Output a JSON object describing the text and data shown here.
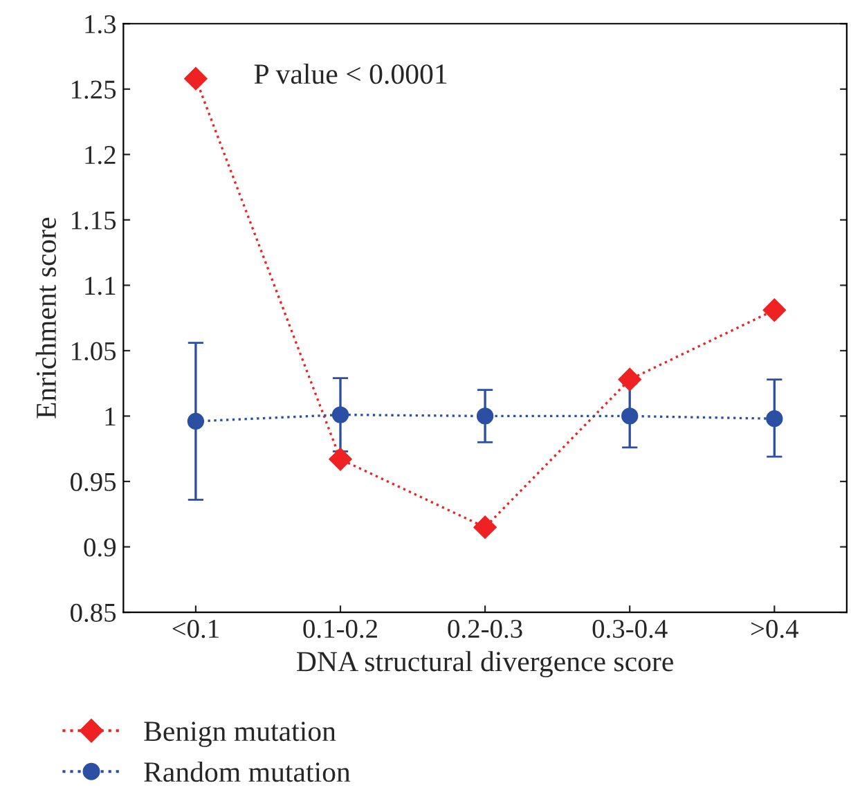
{
  "chart_data": {
    "type": "line",
    "xlabel": "DNA structural divergence score",
    "ylabel": "Enrichment score",
    "categories": [
      "<0.1",
      "0.1-0.2",
      "0.2-0.3",
      "0.3-0.4",
      ">0.4"
    ],
    "series": [
      {
        "name": "Benign mutation",
        "color": "#ee2222",
        "marker": "diamond",
        "line_style": "dotted",
        "values": [
          1.258,
          0.967,
          0.915,
          1.028,
          1.081
        ]
      },
      {
        "name": "Random mutation",
        "color": "#2b4fa3",
        "marker": "circle",
        "line_style": "dotted",
        "values": [
          0.996,
          1.001,
          1.0,
          1.0,
          0.998
        ],
        "errors": [
          [
            0.936,
            1.056
          ],
          [
            0.973,
            1.029
          ],
          [
            0.98,
            1.02
          ],
          [
            0.976,
            1.025
          ],
          [
            0.969,
            1.028
          ]
        ]
      }
    ],
    "ylim": [
      0.85,
      1.3
    ],
    "yticks": [
      0.85,
      0.9,
      0.95,
      1,
      1.05,
      1.1,
      1.15,
      1.2,
      1.25,
      1.3
    ],
    "annotations": [
      "P value < 0.0001"
    ],
    "legend": "bottom left",
    "grid": false
  }
}
